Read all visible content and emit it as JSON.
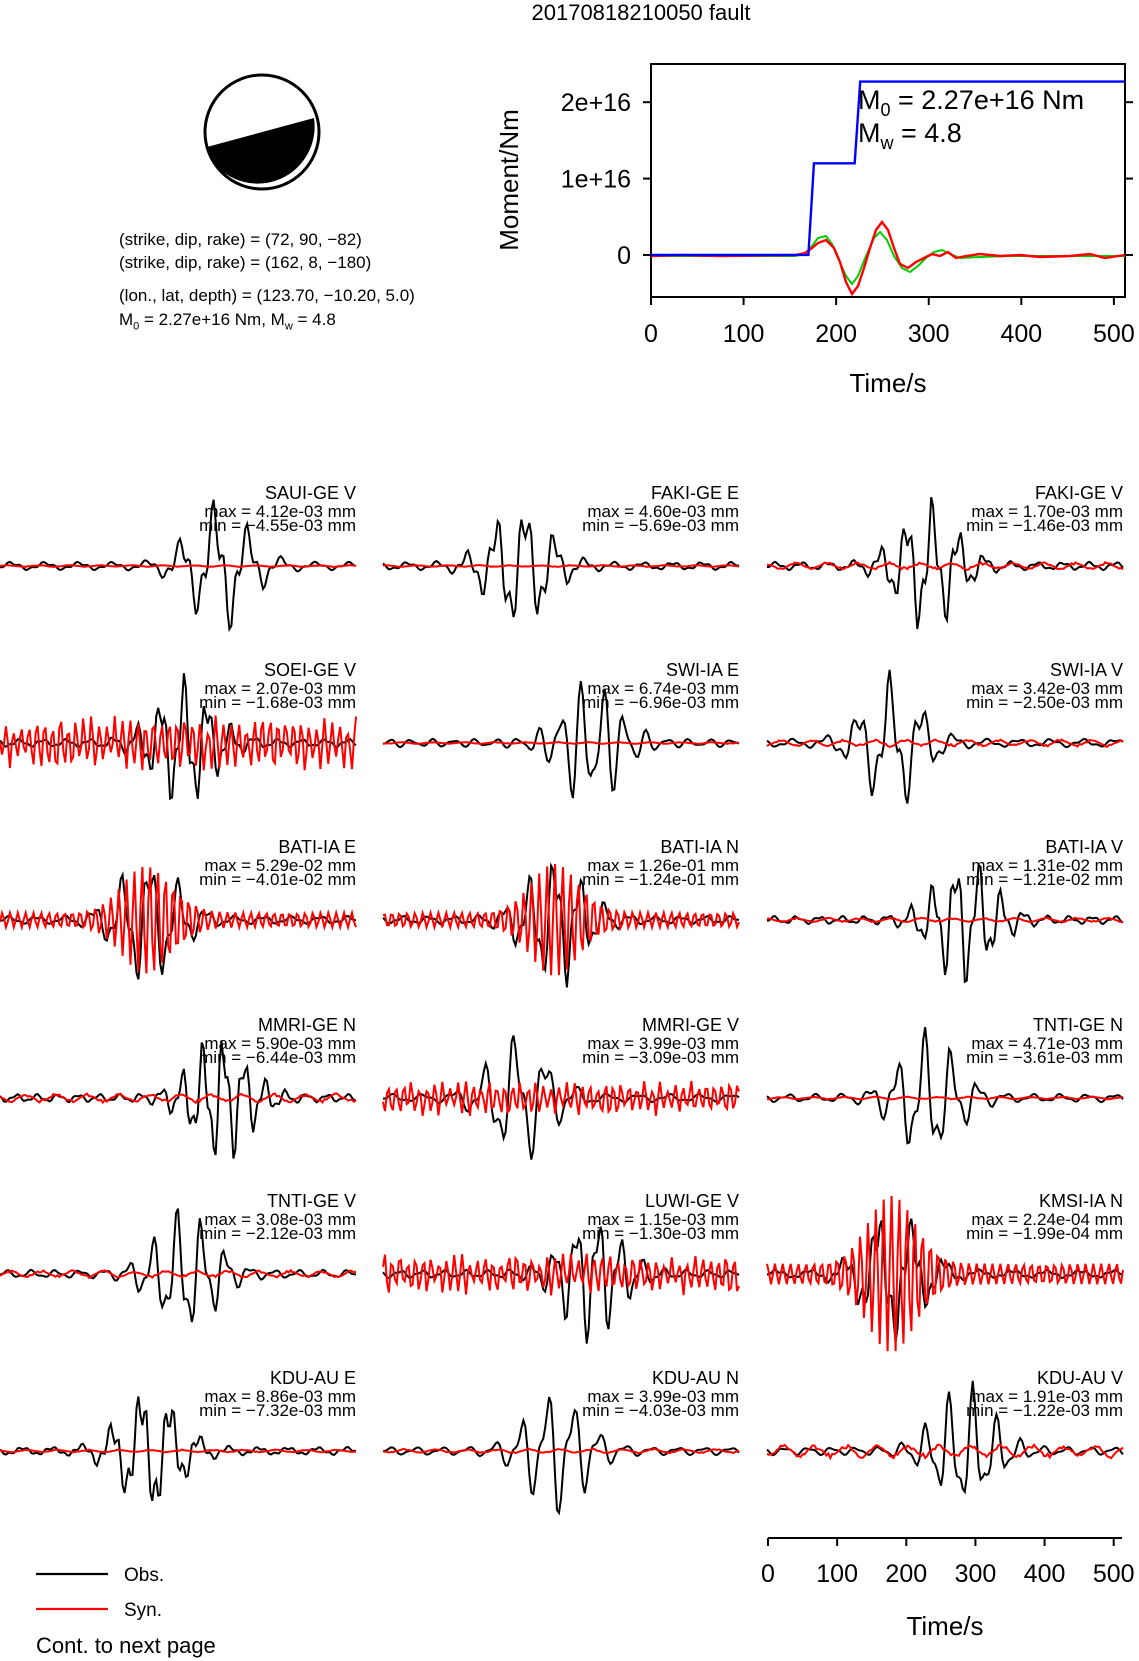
{
  "title": "20170818210050 fault",
  "info": {
    "line1": "(strike, dip, rake) = (72, 90, −82)",
    "line2": "(strike, dip, rake) = (162, 8, −180)",
    "line3": "(lon., lat, depth) = (123.70, −10.20, 5.0)",
    "line4_m0": "M",
    "line4_m0_sub": "0",
    "line4_m0_val": " = 2.27e+16 Nm, M",
    "line4_mw_sub": "w",
    "line4_mw_val": " = 4.8"
  },
  "moment_panel": {
    "m0_label": "M",
    "m0_sub": "0",
    "m0_value": " = 2.27e+16 Nm",
    "mw_label": "M",
    "mw_sub": "w",
    "mw_value": " = 4.8",
    "colors": {
      "cumulative": "#0000ff",
      "rate_green": "#00cc00",
      "rate_red": "#ff0000"
    }
  },
  "chart_data": [
    {
      "type": "line",
      "ylabel": "Moment/Nm",
      "xlabel": "Time/s",
      "xlim": [
        0,
        512
      ],
      "ylim": [
        -5500000000000000.0,
        2.5e+16
      ],
      "xticks": [
        "0",
        "100",
        "200",
        "300",
        "400",
        "500"
      ],
      "yticks": [
        {
          "v": 0,
          "label": "0"
        },
        {
          "v": 1e+16,
          "label": "1e+16"
        },
        {
          "v": 2e+16,
          "label": "2e+16"
        }
      ],
      "series": [
        {
          "color": "#0000ff",
          "x": [
            0,
            170,
            176,
            220,
            226,
            512
          ],
          "y": [
            0,
            0,
            1.2e+16,
            1.2e+16,
            2.27e+16,
            2.27e+16
          ]
        }
      ]
    }
  ],
  "stations": [
    {
      "name": "SAUI-GE V",
      "max": "max = 4.12e-03 mm",
      "min": "min = −4.55e-03 mm",
      "syn_level": 0.02
    },
    {
      "name": "FAKI-GE E",
      "max": "max = 4.60e-03 mm",
      "min": "min = −5.69e-03 mm",
      "syn_level": 0.02
    },
    {
      "name": "FAKI-GE V",
      "max": "max = 1.70e-03 mm",
      "min": "min = −1.46e-03 mm",
      "syn_level": 0.08
    },
    {
      "name": "SOEI-GE V",
      "max": "max = 2.07e-03 mm",
      "min": "min = −1.68e-03 mm",
      "syn_level": 0.6
    },
    {
      "name": "SWI-IA E",
      "max": "max = 6.74e-03 mm",
      "min": "min = −6.96e-03 mm",
      "syn_level": 0.02
    },
    {
      "name": "SWI-IA V",
      "max": "max = 3.42e-03 mm",
      "min": "min = −2.50e-03 mm",
      "syn_level": 0.08
    },
    {
      "name": "BATI-IA E",
      "max": "max = 5.29e-02 mm",
      "min": "min = −4.01e-02 mm",
      "syn_level": 1.0
    },
    {
      "name": "BATI-IA N",
      "max": "max = 1.26e-01 mm",
      "min": "min = −1.24e-01 mm",
      "syn_level": 1.0
    },
    {
      "name": "BATI-IA V",
      "max": "max = 1.31e-02 mm",
      "min": "min = −1.21e-02 mm",
      "syn_level": 0.05
    },
    {
      "name": "MMRI-GE N",
      "max": "max = 5.90e-03 mm",
      "min": "min = −6.44e-03 mm",
      "syn_level": 0.1
    },
    {
      "name": "MMRI-GE V",
      "max": "max = 3.99e-03 mm",
      "min": "min = −3.09e-03 mm",
      "syn_level": 0.4
    },
    {
      "name": "TNTI-GE N",
      "max": "max = 4.71e-03 mm",
      "min": "min = −3.61e-03 mm",
      "syn_level": 0.03
    },
    {
      "name": "TNTI-GE V",
      "max": "max = 3.08e-03 mm",
      "min": "min = −2.12e-03 mm",
      "syn_level": 0.08
    },
    {
      "name": "LUWI-GE V",
      "max": "max = 1.15e-03 mm",
      "min": "min = −1.30e-03 mm",
      "syn_level": 0.45
    },
    {
      "name": "KMSI-IA N",
      "max": "max = 2.24e-04 mm",
      "min": "min = −1.99e-04 mm",
      "syn_level": 1.4
    },
    {
      "name": "KDU-AU E",
      "max": "max = 8.86e-03 mm",
      "min": "min = −7.32e-03 mm",
      "syn_level": 0.03
    },
    {
      "name": "KDU-AU N",
      "max": "max = 3.99e-03 mm",
      "min": "min = −4.03e-03 mm",
      "syn_level": 0.05
    },
    {
      "name": "KDU-AU V",
      "max": "max = 1.91e-03 mm",
      "min": "min = −1.22e-03 mm",
      "syn_level": 0.15
    }
  ],
  "bottom_axis": {
    "xlabel": "Time/s",
    "xticks": [
      "0",
      "100",
      "200",
      "300",
      "400",
      "500"
    ],
    "xlim": [
      0,
      512
    ]
  },
  "legend": {
    "obs": "Obs.",
    "syn": "Syn.",
    "obs_color": "#000000",
    "syn_color": "#ff0000"
  },
  "footer": "Cont. to next page"
}
